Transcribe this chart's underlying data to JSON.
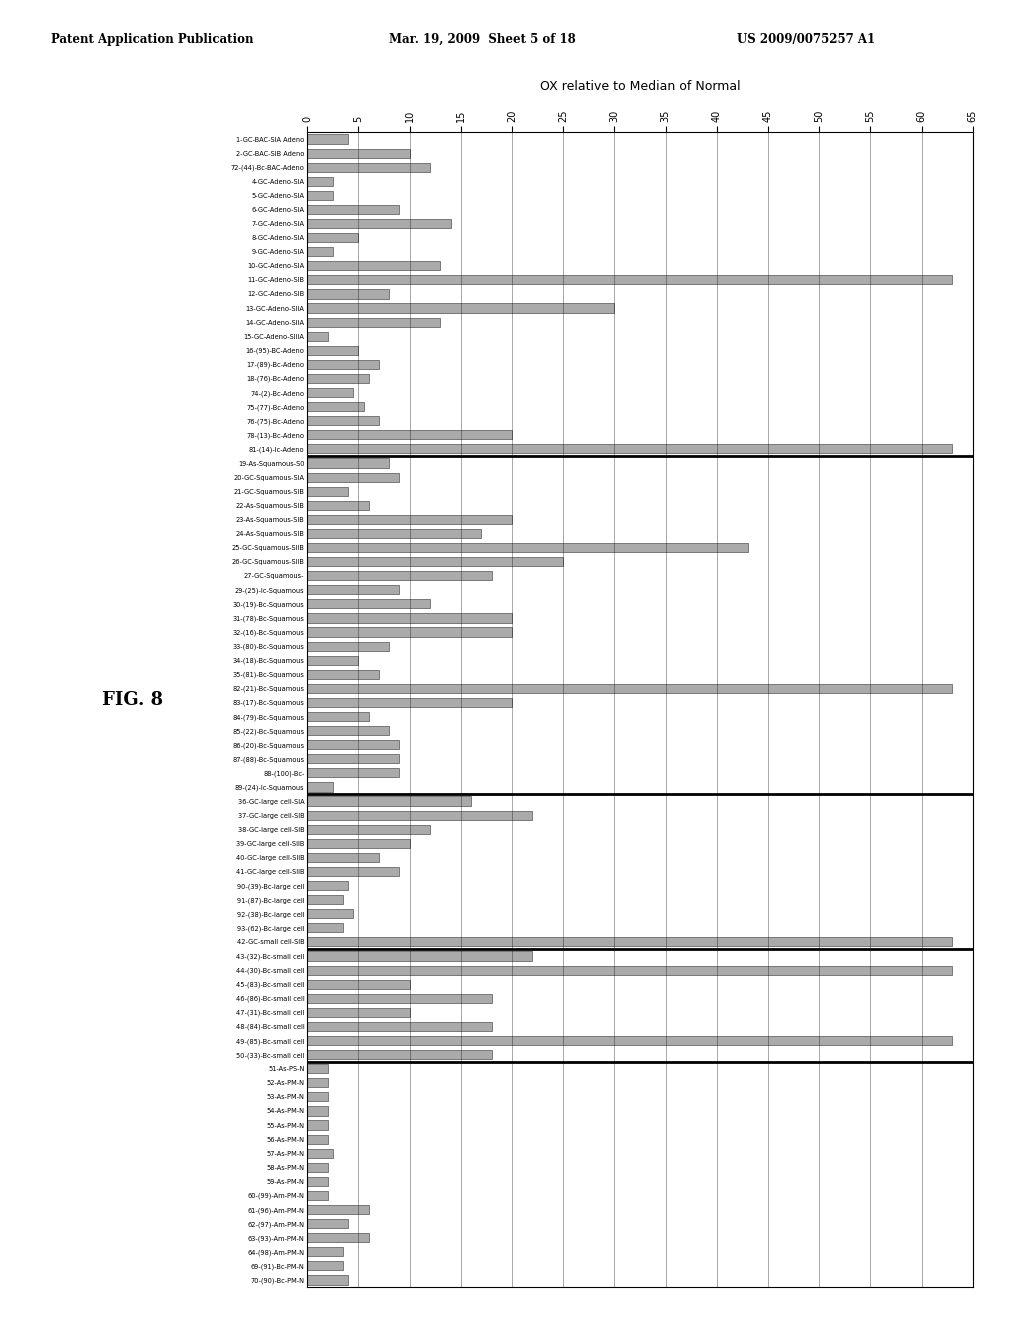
{
  "title": "OX relative to Median of Normal",
  "header_left": "Patent Application Publication",
  "header_mid": "Mar. 19, 2009  Sheet 5 of 18",
  "header_right": "US 2009/0075257 A1",
  "fig_label": "FIG. 8",
  "xlim": [
    0,
    65
  ],
  "xticks": [
    0,
    5,
    10,
    15,
    20,
    25,
    30,
    35,
    40,
    45,
    50,
    55,
    60,
    65
  ],
  "labels": [
    "1-GC-BAC-SIA Adeno",
    "2-GC-BAC-SIB Adeno",
    "72-(44)-Bc-BAC-Adeno",
    "4-GC-Adeno-SIA",
    "5-GC-Adeno-SIA",
    "6-GC-Adeno-SIA",
    "7-GC-Adeno-SIA",
    "8-GC-Adeno-SIA",
    "9-GC-Adeno-SIA",
    "10-GC-Adeno-SIA",
    "11-GC-Adeno-SIB",
    "12-GC-Adeno-SIB",
    "13-GC-Adeno-SIIA",
    "14-GC-Adeno-SIIA",
    "15-GC-Adeno-SIIIA",
    "16-(95)-BC-Adeno",
    "17-(89)-Bc-Adeno",
    "18-(76)-Bc-Adeno",
    "74-(2)-Bc-Adeno",
    "75-(77)-Bc-Adeno",
    "76-(75)-Bc-Adeno",
    "78-(13)-Bc-Adeno",
    "81-(14)-Ic-Adeno",
    "19-As-Squamous-S0",
    "20-GC-Squamous-SIA",
    "21-GC-Squamous-SIB",
    "22-As-Squamous-SIB",
    "23-As-Squamous-SIB",
    "24-As-Squamous-SIB",
    "25-GC-Squamous-SIIB",
    "26-GC-Squamous-SIIB",
    "27-GC-Squamous-",
    "29-(25)-Ic-Squamous",
    "30-(19)-Bc-Squamous",
    "31-(78)-Bc-Squamous",
    "32-(16)-Bc-Squamous",
    "33-(80)-Bc-Squamous",
    "34-(18)-Bc-Squamous",
    "35-(81)-Bc-Squamous",
    "82-(21)-Bc-Squamous",
    "83-(17)-Bc-Squamous",
    "84-(79)-Bc-Squamous",
    "85-(22)-Bc-Squamous",
    "86-(20)-Bc-Squamous",
    "87-(88)-Bc-Squamous",
    "88-(100)-Bc-",
    "89-(24)-Ic-Squamous",
    "36-GC-large cell-SIA",
    "37-GC-large cell-SIB",
    "38-GC-large cell-SIB",
    "39-GC-large cell-SIIB",
    "40-GC-large cell-SIIB",
    "41-GC-large cell-SIIB",
    "90-(39)-Bc-large cell",
    "91-(87)-Bc-large cell",
    "92-(38)-Bc-large cell",
    "93-(62)-Bc-large cell",
    "42-GC-small cell-SIB",
    "43-(32)-Bc-small cell",
    "44-(30)-Bc-small cell",
    "45-(83)-Bc-small cell",
    "46-(86)-Bc-small cell",
    "47-(31)-Bc-small cell",
    "48-(84)-Bc-small cell",
    "49-(85)-Bc-small cell",
    "50-(33)-Bc-small cell",
    "51-As-PS-N",
    "52-As-PM-N",
    "53-As-PM-N",
    "54-As-PM-N",
    "55-As-PM-N",
    "56-As-PM-N",
    "57-As-PM-N",
    "58-As-PM-N",
    "59-As-PM-N",
    "60-(99)-Am-PM-N",
    "61-(96)-Am-PM-N",
    "62-(97)-Am-PM-N",
    "63-(93)-Am-PM-N",
    "64-(98)-Am-PM-N",
    "69-(91)-Bc-PM-N",
    "70-(90)-Bc-PM-N"
  ],
  "values": [
    4.0,
    10.0,
    12.0,
    2.5,
    2.5,
    9.0,
    14.0,
    5.0,
    2.5,
    13.0,
    63.0,
    8.0,
    30.0,
    13.0,
    2.0,
    5.0,
    7.0,
    6.0,
    4.5,
    5.5,
    7.0,
    20.0,
    63.0,
    8.0,
    9.0,
    4.0,
    6.0,
    20.0,
    17.0,
    43.0,
    25.0,
    18.0,
    9.0,
    12.0,
    20.0,
    20.0,
    8.0,
    5.0,
    7.0,
    63.0,
    20.0,
    6.0,
    8.0,
    9.0,
    9.0,
    9.0,
    2.5,
    16.0,
    22.0,
    12.0,
    10.0,
    7.0,
    9.0,
    4.0,
    3.5,
    4.5,
    3.5,
    63.0,
    22.0,
    63.0,
    10.0,
    18.0,
    10.0,
    18.0,
    63.0,
    18.0,
    2.0,
    2.0,
    2.0,
    2.0,
    2.0,
    2.0,
    2.5,
    2.0,
    2.0,
    2.0,
    6.0,
    4.0,
    6.0,
    3.5,
    3.5,
    4.0
  ],
  "separators_after": [
    22,
    46,
    57,
    65
  ],
  "background_color": "#ffffff",
  "bar_color": "#aaaaaa",
  "bar_edge_color": "#333333"
}
